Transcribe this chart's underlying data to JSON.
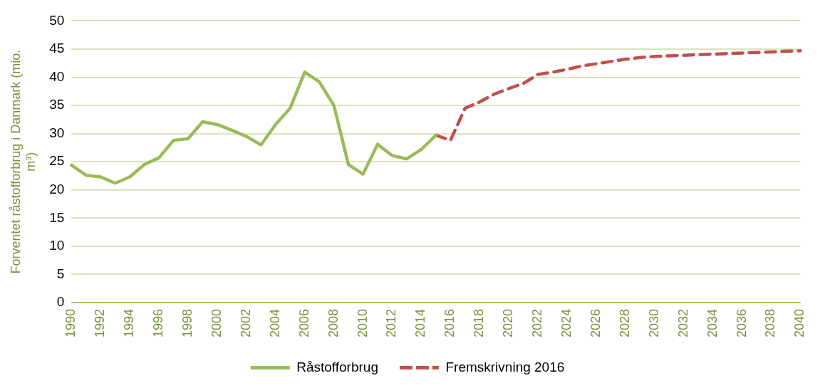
{
  "chart_data": {
    "type": "line",
    "ylabel": "Forventet råstofforbrug i Danmark (mio. m³)",
    "categories": [
      "1990",
      null,
      "1992",
      null,
      "1994",
      null,
      "1996",
      null,
      "1998",
      null,
      "2000",
      null,
      "2002",
      null,
      "2004",
      null,
      "2006",
      null,
      "2008",
      null,
      "2010",
      null,
      "2012",
      null,
      "2014",
      null,
      "2016",
      null,
      "2018",
      null,
      "2020",
      null,
      "2022",
      null,
      "2024",
      null,
      "2026",
      null,
      "2028",
      null,
      "2030",
      null,
      "2032",
      null,
      "2034",
      null,
      "2036",
      null,
      "2038",
      null,
      "2040"
    ],
    "series": [
      {
        "name": "Råstofforbrug",
        "color": "#9bbb59",
        "line_style": "solid",
        "values": [
          24.4,
          22.6,
          22.3,
          21.2,
          22.3,
          24.5,
          25.7,
          28.8,
          29.1,
          32.1,
          31.6,
          30.6,
          29.5,
          28.0,
          31.6,
          34.5,
          40.9,
          39.2,
          35.0,
          24.5,
          22.8,
          28.1,
          26.1,
          25.5,
          27.2,
          29.7,
          null,
          null,
          null,
          null,
          null,
          null,
          null,
          null,
          null,
          null,
          null,
          null,
          null,
          null,
          null,
          null,
          null,
          null,
          null,
          null,
          null,
          null,
          null,
          null,
          null
        ]
      },
      {
        "name": "Fremskrivning 2016",
        "color": "#c0504d",
        "line_style": "dashed",
        "values": [
          null,
          null,
          null,
          null,
          null,
          null,
          null,
          null,
          null,
          null,
          null,
          null,
          null,
          null,
          null,
          null,
          null,
          null,
          null,
          null,
          null,
          null,
          null,
          null,
          null,
          29.7,
          28.8,
          34.5,
          35.6,
          37.0,
          38.0,
          38.9,
          40.5,
          40.9,
          41.4,
          42.0,
          42.4,
          42.8,
          43.2,
          43.5,
          43.7,
          43.8,
          43.9,
          44.0,
          44.1,
          44.2,
          44.3,
          44.4,
          44.5,
          44.6,
          44.7
        ]
      }
    ],
    "ylim": [
      0,
      50
    ],
    "yticks": [
      0,
      5,
      10,
      15,
      20,
      25,
      30,
      35,
      40,
      45,
      50
    ],
    "grid": "y",
    "legend": "bottom",
    "marker": "none"
  }
}
